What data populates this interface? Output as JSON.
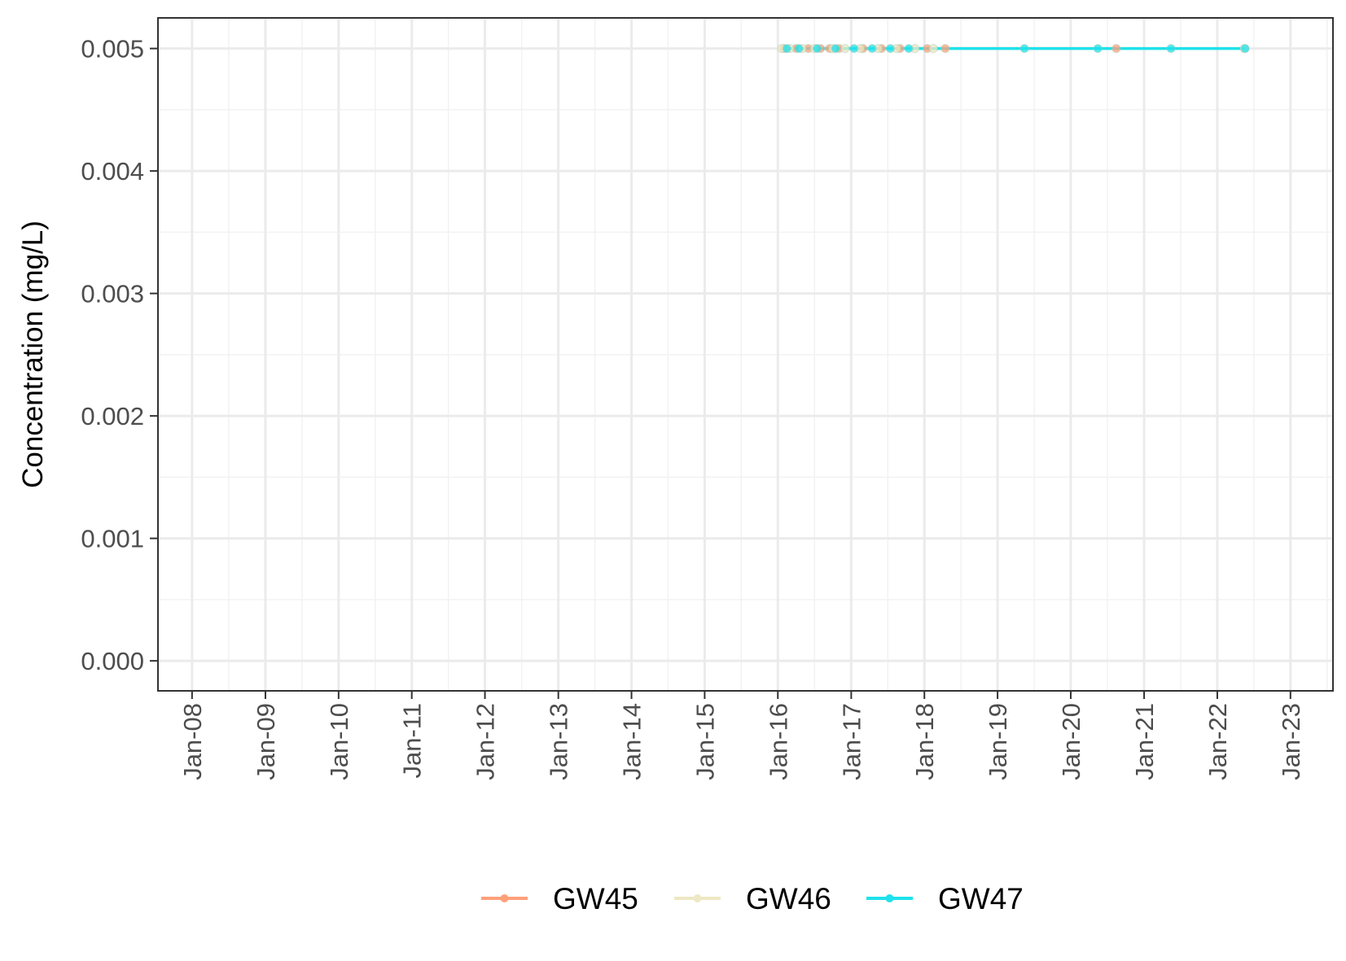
{
  "chart_data": {
    "type": "line",
    "title": "",
    "xlabel": "",
    "ylabel": "Concentration (mg/L)",
    "x_ticks": [
      "Jan-08",
      "Jan-09",
      "Jan-10",
      "Jan-11",
      "Jan-12",
      "Jan-13",
      "Jan-14",
      "Jan-15",
      "Jan-16",
      "Jan-17",
      "Jan-18",
      "Jan-19",
      "Jan-20",
      "Jan-21",
      "Jan-22",
      "Jan-23"
    ],
    "y_ticks": [
      "0.000",
      "0.001",
      "0.002",
      "0.003",
      "0.004",
      "0.005"
    ],
    "ylim": [
      -0.000245,
      0.00525
    ],
    "xlim": [
      "2007-07-15",
      "2023-08-01"
    ],
    "grid": true,
    "legend_position": "bottom",
    "series": [
      {
        "name": "GW45",
        "color": "#FFA07A",
        "points": [
          {
            "x": "2016-02-01",
            "y": 0.005
          },
          {
            "x": "2016-04-01",
            "y": 0.005
          },
          {
            "x": "2016-06-01",
            "y": 0.005
          },
          {
            "x": "2016-08-01",
            "y": 0.005
          },
          {
            "x": "2016-09-15",
            "y": 0.005
          },
          {
            "x": "2016-11-01",
            "y": 0.005
          },
          {
            "x": "2017-03-01",
            "y": 0.005
          },
          {
            "x": "2017-06-01",
            "y": 0.005
          },
          {
            "x": "2017-09-01",
            "y": 0.005
          },
          {
            "x": "2018-01-15",
            "y": 0.005
          },
          {
            "x": "2018-04-15",
            "y": 0.005
          },
          {
            "x": "2020-08-15",
            "y": 0.005
          }
        ]
      },
      {
        "name": "GW46",
        "color": "#EEE8C4",
        "points": [
          {
            "x": "2016-01-20",
            "y": 0.005
          },
          {
            "x": "2016-03-01",
            "y": 0.005
          },
          {
            "x": "2016-05-01",
            "y": 0.005
          },
          {
            "x": "2016-07-01",
            "y": 0.005
          },
          {
            "x": "2016-10-01",
            "y": 0.005
          },
          {
            "x": "2016-12-01",
            "y": 0.005
          },
          {
            "x": "2017-02-15",
            "y": 0.005
          },
          {
            "x": "2017-05-15",
            "y": 0.005
          },
          {
            "x": "2017-08-15",
            "y": 0.005
          },
          {
            "x": "2017-11-15",
            "y": 0.005
          },
          {
            "x": "2018-02-15",
            "y": 0.005
          },
          {
            "x": "2022-05-15",
            "y": 0.005
          }
        ]
      },
      {
        "name": "GW47",
        "color": "#1EE2EC",
        "points": [
          {
            "x": "2016-02-15",
            "y": 0.005
          },
          {
            "x": "2016-04-15",
            "y": 0.005
          },
          {
            "x": "2016-07-15",
            "y": 0.005
          },
          {
            "x": "2016-10-15",
            "y": 0.005
          },
          {
            "x": "2017-01-15",
            "y": 0.005
          },
          {
            "x": "2017-04-15",
            "y": 0.005
          },
          {
            "x": "2017-07-15",
            "y": 0.005
          },
          {
            "x": "2017-10-15",
            "y": 0.005
          },
          {
            "x": "2019-05-15",
            "y": 0.005
          },
          {
            "x": "2020-05-15",
            "y": 0.005
          },
          {
            "x": "2021-05-15",
            "y": 0.005
          },
          {
            "x": "2022-05-20",
            "y": 0.005
          }
        ]
      }
    ]
  }
}
